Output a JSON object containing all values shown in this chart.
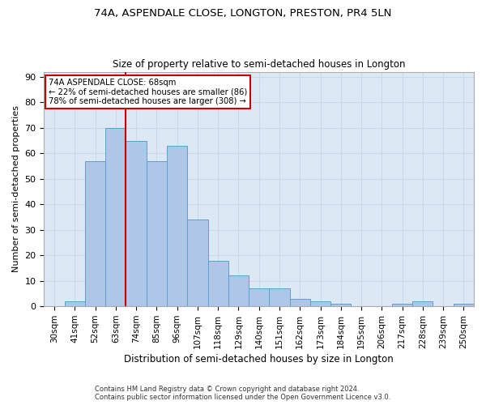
{
  "title": "74A, ASPENDALE CLOSE, LONGTON, PRESTON, PR4 5LN",
  "subtitle": "Size of property relative to semi-detached houses in Longton",
  "xlabel": "Distribution of semi-detached houses by size in Longton",
  "ylabel": "Number of semi-detached properties",
  "footer1": "Contains HM Land Registry data © Crown copyright and database right 2024.",
  "footer2": "Contains public sector information licensed under the Open Government Licence v3.0.",
  "categories": [
    "30sqm",
    "41sqm",
    "52sqm",
    "63sqm",
    "74sqm",
    "85sqm",
    "96sqm",
    "107sqm",
    "118sqm",
    "129sqm",
    "140sqm",
    "151sqm",
    "162sqm",
    "173sqm",
    "184sqm",
    "195sqm",
    "206sqm",
    "217sqm",
    "228sqm",
    "239sqm",
    "250sqm"
  ],
  "values": [
    0,
    2,
    57,
    70,
    65,
    57,
    63,
    34,
    18,
    12,
    7,
    7,
    3,
    2,
    1,
    0,
    0,
    1,
    2,
    0,
    1
  ],
  "bar_color": "#aec6e8",
  "bar_edge_color": "#5a9fd4",
  "highlight_label": "74A ASPENDALE CLOSE: 68sqm",
  "pct_smaller": "22% of semi-detached houses are smaller (86)",
  "pct_larger": "78% of semi-detached houses are larger (308)",
  "annotation_box_color": "#ffffff",
  "annotation_box_edge": "#cc0000",
  "red_line_color": "#cc0000",
  "grid_color": "#c8daea",
  "bg_color": "#dce9f5",
  "ylim": [
    0,
    92
  ],
  "yticks": [
    0,
    10,
    20,
    30,
    40,
    50,
    60,
    70,
    80,
    90
  ],
  "red_line_index": 3.5
}
